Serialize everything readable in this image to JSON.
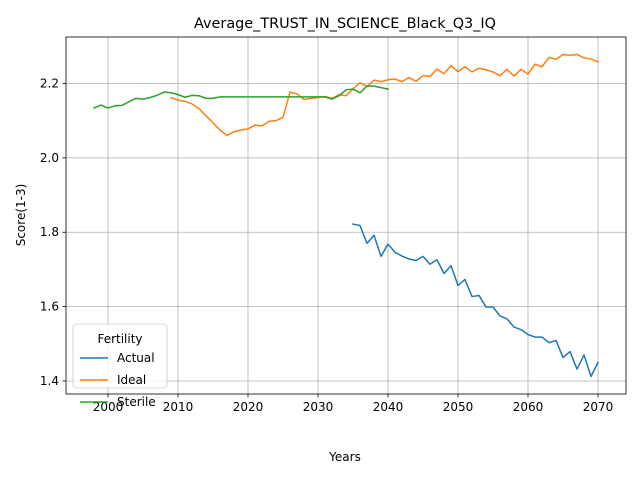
{
  "chart_data": {
    "type": "line",
    "title": "Average_TRUST_IN_SCIENCE_Black_Q3_IQ",
    "xlabel": "Years",
    "ylabel": "Score(1-3)",
    "xlim": [
      1994,
      2074
    ],
    "ylim": [
      1.365,
      2.325
    ],
    "xticks": [
      2000,
      2010,
      2020,
      2030,
      2040,
      2050,
      2060,
      2070
    ],
    "yticks": [
      1.4,
      1.6,
      1.8,
      2.0,
      2.2
    ],
    "xtick_labels": [
      "2000",
      "2010",
      "2020",
      "2030",
      "2040",
      "2050",
      "2060",
      "2070"
    ],
    "ytick_labels": [
      "1.4",
      "1.6",
      "1.8",
      "2.0",
      "2.2"
    ],
    "grid": true,
    "legend": {
      "title": "Fertility",
      "placement": "lower-left"
    },
    "series": [
      {
        "name": "Actual",
        "color": "#1f77b4",
        "x": [
          2035,
          2036,
          2037,
          2038,
          2039,
          2040,
          2041,
          2042,
          2043,
          2044,
          2045,
          2046,
          2047,
          2048,
          2049,
          2050,
          2051,
          2052,
          2053,
          2054,
          2055,
          2056,
          2057,
          2058,
          2059,
          2060,
          2061,
          2062,
          2063,
          2064,
          2065,
          2066,
          2067,
          2068,
          2069,
          2070
        ],
        "y": [
          1.822,
          1.818,
          1.77,
          1.792,
          1.735,
          1.768,
          1.746,
          1.736,
          1.728,
          1.724,
          1.735,
          1.714,
          1.726,
          1.689,
          1.71,
          1.657,
          1.673,
          1.627,
          1.63,
          1.599,
          1.599,
          1.575,
          1.567,
          1.545,
          1.538,
          1.525,
          1.518,
          1.518,
          1.503,
          1.509,
          1.463,
          1.479,
          1.432,
          1.47,
          1.412,
          1.45
        ]
      },
      {
        "name": "Ideal",
        "color": "#ff7f0e",
        "x": [
          2009,
          2010,
          2011,
          2012,
          2013,
          2014,
          2015,
          2016,
          2017,
          2018,
          2019,
          2020,
          2021,
          2022,
          2023,
          2024,
          2025,
          2026,
          2027,
          2028,
          2029,
          2030,
          2031,
          2032,
          2033,
          2034,
          2035,
          2036,
          2037,
          2038,
          2039,
          2040,
          2041,
          2042,
          2043,
          2044,
          2045,
          2046,
          2047,
          2048,
          2049,
          2050,
          2051,
          2052,
          2053,
          2054,
          2055,
          2056,
          2057,
          2058,
          2059,
          2060,
          2061,
          2062,
          2063,
          2064,
          2065,
          2066,
          2067,
          2068,
          2069,
          2070
        ],
        "y": [
          2.162,
          2.155,
          2.152,
          2.145,
          2.132,
          2.113,
          2.094,
          2.075,
          2.06,
          2.07,
          2.075,
          2.078,
          2.088,
          2.086,
          2.098,
          2.1,
          2.109,
          2.177,
          2.172,
          2.157,
          2.16,
          2.162,
          2.165,
          2.16,
          2.17,
          2.167,
          2.185,
          2.202,
          2.192,
          2.209,
          2.205,
          2.21,
          2.212,
          2.205,
          2.216,
          2.206,
          2.221,
          2.219,
          2.239,
          2.226,
          2.248,
          2.232,
          2.245,
          2.231,
          2.241,
          2.237,
          2.231,
          2.221,
          2.238,
          2.22,
          2.238,
          2.225,
          2.252,
          2.245,
          2.27,
          2.265,
          2.278,
          2.276,
          2.278,
          2.269,
          2.266,
          2.258
        ]
      },
      {
        "name": "Sterile",
        "color": "#2ca02c",
        "x": [
          1998,
          1999,
          2000,
          2001,
          2002,
          2003,
          2004,
          2005,
          2006,
          2007,
          2008,
          2009,
          2010,
          2011,
          2012,
          2013,
          2014,
          2015,
          2016,
          2017,
          2018,
          2019,
          2020,
          2021,
          2022,
          2023,
          2024,
          2025,
          2026,
          2027,
          2028,
          2029,
          2030,
          2031,
          2032,
          2033,
          2034,
          2035,
          2036,
          2037,
          2038,
          2039,
          2040
        ],
        "y": [
          2.134,
          2.142,
          2.134,
          2.14,
          2.141,
          2.151,
          2.16,
          2.158,
          2.162,
          2.168,
          2.177,
          2.175,
          2.17,
          2.163,
          2.168,
          2.167,
          2.16,
          2.16,
          2.164,
          2.164,
          2.164,
          2.164,
          2.164,
          2.164,
          2.164,
          2.164,
          2.164,
          2.164,
          2.164,
          2.164,
          2.164,
          2.164,
          2.164,
          2.164,
          2.158,
          2.167,
          2.183,
          2.185,
          2.175,
          2.193,
          2.193,
          2.189,
          2.185
        ]
      }
    ]
  }
}
